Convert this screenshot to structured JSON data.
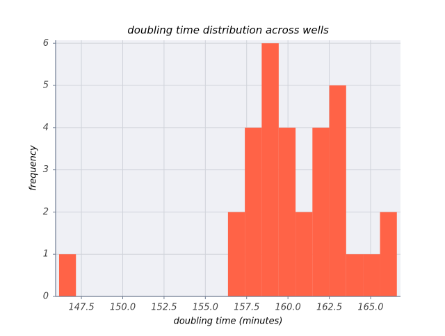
{
  "chart_data": {
    "type": "histogram",
    "title": "doubling time distribution across wells",
    "x_label": "doubling time (minutes)",
    "y_label": "frequency",
    "bins": [
      146.15,
      147.17,
      148.19,
      149.22,
      150.24,
      151.26,
      152.28,
      153.3,
      154.33,
      155.35,
      156.37,
      157.39,
      158.41,
      159.44,
      160.46,
      161.48,
      162.5,
      163.52,
      164.54,
      165.57,
      166.59
    ],
    "values": [
      1,
      0,
      0,
      0,
      0,
      0,
      0,
      0,
      0,
      0,
      2,
      4,
      6,
      4,
      2,
      4,
      5,
      1,
      1,
      2
    ],
    "color": "#ff6347",
    "xlim": [
      145.94,
      166.81
    ],
    "ylim": [
      0,
      6.07
    ],
    "xticks": [
      147.5,
      {
        "value": 150.0,
        "label": "150.0"
      },
      152.5,
      {
        "value": 155.0,
        "label": "155.0"
      },
      157.5,
      {
        "value": 160.0,
        "label": "160.0"
      },
      162.5,
      {
        "value": 165.0,
        "label": "165.0"
      }
    ],
    "yticks": [
      0,
      1,
      2,
      3,
      4,
      5,
      6
    ],
    "grid": true
  }
}
